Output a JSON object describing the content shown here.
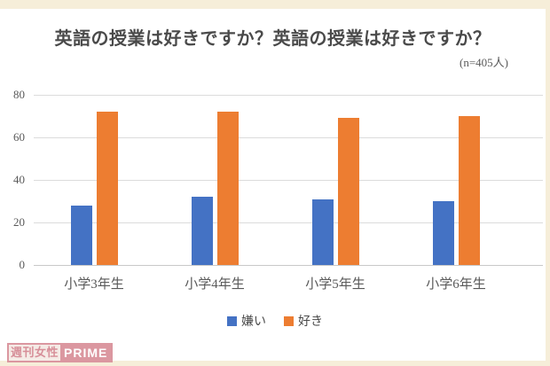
{
  "title": "英語の授業は好きですか？英語の授業は好きですか？",
  "sample_label": "(n=405人)",
  "watermark": {
    "left": "週刊女性",
    "right": "PRIME"
  },
  "colors": {
    "dislike_blue": "#4472c4",
    "like_orange": "#ed7d31",
    "background_cream": "#f6eed9",
    "card_white": "#ffffff",
    "axis_text": "#595959",
    "gridline": "#dcdcdc",
    "badge_pink": "#db97a0"
  },
  "chart_data": {
    "type": "bar",
    "title": "英語の授業は好きですか？英語の授業は好きですか？",
    "subtitle": "(n=405人)",
    "categories": [
      "小学3年生",
      "小学4年生",
      "小学5年生",
      "小学6年生"
    ],
    "series": [
      {
        "name": "嫌い",
        "color": "#4472c4",
        "values": [
          28,
          32,
          31,
          30
        ]
      },
      {
        "name": "好き",
        "color": "#ed7d31",
        "values": [
          72,
          72,
          69,
          70
        ]
      }
    ],
    "xlabel": "",
    "ylabel": "",
    "ylim": [
      0,
      80
    ],
    "yticks": [
      0,
      20,
      40,
      60,
      80
    ],
    "grid": true,
    "legend_position": "bottom"
  }
}
